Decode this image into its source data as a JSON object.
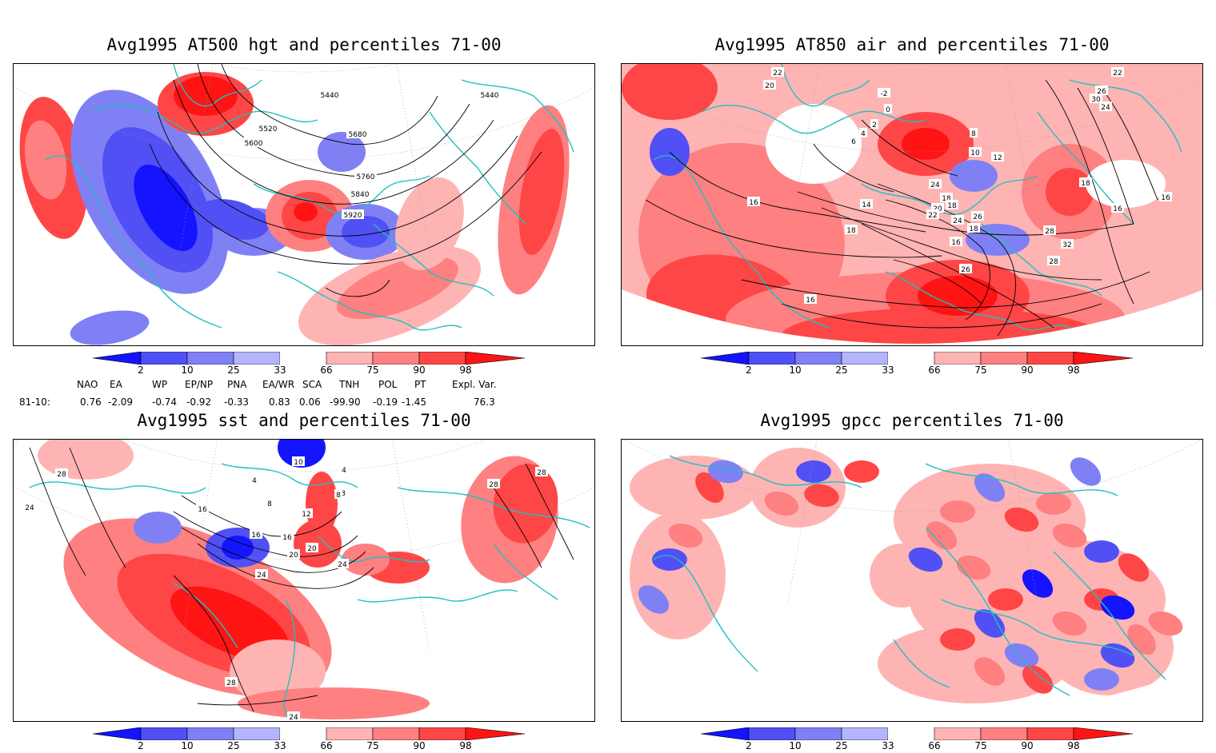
{
  "panels": [
    {
      "title": "Avg1995 AT500 hgt and percentiles 71-00",
      "contour_labels": [
        "5440",
        "5440",
        "5520",
        "5600",
        "5680",
        "5760",
        "5840",
        "5920"
      ]
    },
    {
      "title": "Avg1995 AT850 air and percentiles 71-00",
      "contour_labels": [
        "22",
        "20",
        "-2",
        "0",
        "2",
        "4",
        "6",
        "8",
        "10",
        "12",
        "14",
        "16",
        "16",
        "16",
        "16",
        "16",
        "18",
        "18",
        "18",
        "18",
        "20",
        "22",
        "24",
        "24",
        "26",
        "26",
        "28",
        "28",
        "32",
        "22",
        "26",
        "30",
        "24",
        "18"
      ]
    },
    {
      "title": "Avg1995 sst and percentiles 71-00",
      "contour_labels": [
        "28",
        "24",
        "16",
        "4",
        "8",
        "12",
        "16",
        "16",
        "20",
        "20",
        "24",
        "24",
        "28",
        "28",
        "28",
        "24",
        "10",
        "4",
        "8",
        "8"
      ]
    },
    {
      "title": "Avg1995 gpcc percentiles 71-00",
      "contour_labels": []
    }
  ],
  "colorbar": {
    "ticks": [
      "2",
      "10",
      "25",
      "33",
      "66",
      "75",
      "90",
      "98"
    ],
    "colors": [
      "#1414ff",
      "#5050f5",
      "#8080f5",
      "#b4b4ff",
      "#ffffff",
      "#ffb4b4",
      "#ff8080",
      "#ff4646",
      "#ff1414"
    ]
  },
  "indices": {
    "headers": [
      "NAO",
      "EA",
      "WP",
      "EP/NP",
      "PNA",
      "EA/WR",
      "SCA",
      "TNH",
      "POL",
      "PT",
      "Expl. Var."
    ],
    "row_label": "81-10:",
    "values": [
      "0.76",
      "-2.09",
      "-0.74",
      "-0.92",
      "-0.33",
      "0.83",
      "0.06",
      "-99.90",
      "-0.19",
      "-1.45",
      "76.3"
    ]
  },
  "colors": {
    "coast": "#20c0c0",
    "grid": "#9a9a9a",
    "contour": "#000000"
  }
}
